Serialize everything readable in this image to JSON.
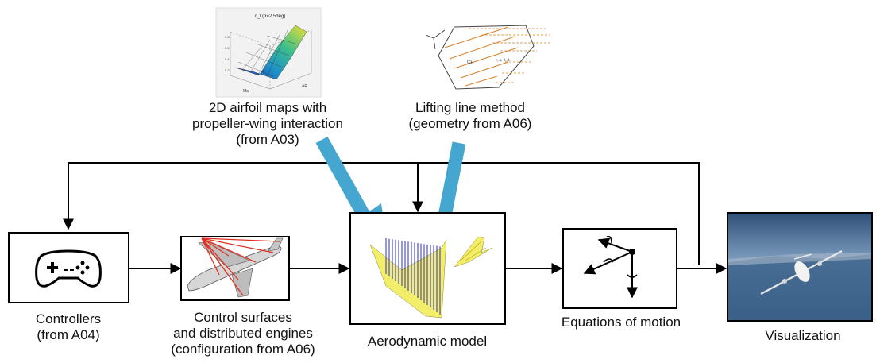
{
  "top_images": {
    "airfoil_plot": {
      "title": "c_l (α=2.5deg)",
      "x_label": "Ma",
      "y_label": "AR",
      "z_ticks": [
        "0.2",
        "0.4",
        "0.6",
        "0.8"
      ]
    },
    "lifting_line": {
      "cp_label": "CP",
      "param_label": "ε, φ, θ, Λ"
    }
  },
  "labels": {
    "airfoil_maps": [
      "2D airfoil maps with",
      "propeller-wing interaction",
      "(from A03)"
    ],
    "lifting_line": [
      "Lifting line method",
      "(geometry from A06)"
    ],
    "controllers": [
      "Controllers",
      "(from A04)"
    ],
    "control_surfaces": [
      "Control surfaces",
      "and distributed engines",
      "(configuration from A06)"
    ],
    "aero_model": [
      "Aerodynamic model"
    ],
    "eom": [
      "Equations of motion"
    ],
    "visualization": [
      "Visualization"
    ]
  },
  "colors": {
    "arrow_blue": "#45a6cf",
    "box_stroke": "#000000",
    "wing_yellow": "#f2ee6a",
    "vortex_blue": "#2a2ad0",
    "aircraft_red": "#e03020",
    "sky_top": "#2f4f78",
    "sky_bottom": "#6f94b8"
  },
  "icons": {
    "controllers": "gamepad-icon",
    "control_surfaces": "airliner-illustration",
    "aero_model": "vortex-lattice-wing-illustration",
    "eom": "body-axes-icon",
    "visualization": "flight-simulator-scene"
  }
}
